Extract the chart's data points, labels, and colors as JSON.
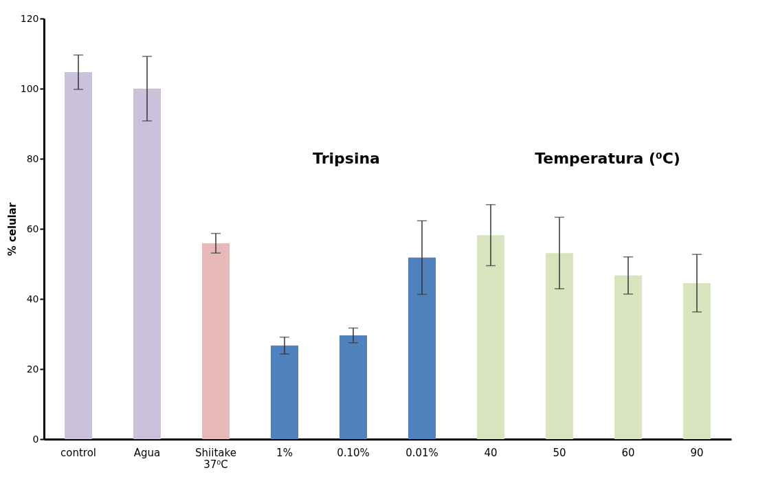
{
  "chart_data": {
    "type": "bar",
    "ylabel": "% celular",
    "categories": [
      "control",
      "Agua",
      "Shiitake\n37⁰C",
      "1%",
      "0.10%",
      "0.01%",
      "40",
      "50",
      "60",
      "90"
    ],
    "values": [
      104.7,
      100,
      55.9,
      26.7,
      29.6,
      51.8,
      58.2,
      53.1,
      46.7,
      44.5
    ],
    "errors": [
      4.9,
      9.2,
      2.8,
      2.4,
      2.1,
      10.5,
      8.7,
      10.2,
      5.3,
      8.2
    ],
    "colors": [
      "#ccc1da",
      "#ccc1da",
      "#e6b9b8",
      "#4f81bd",
      "#4f81bd",
      "#4f81bd",
      "#d7e4bd",
      "#d7e4bd",
      "#d7e4bd",
      "#d7e4bd"
    ],
    "ylim": [
      0,
      120
    ],
    "yticks": [
      0,
      20,
      40,
      60,
      80,
      100,
      120
    ],
    "grid": false,
    "annotations": [
      "Tripsina",
      "Temperatura (⁰C)"
    ]
  }
}
